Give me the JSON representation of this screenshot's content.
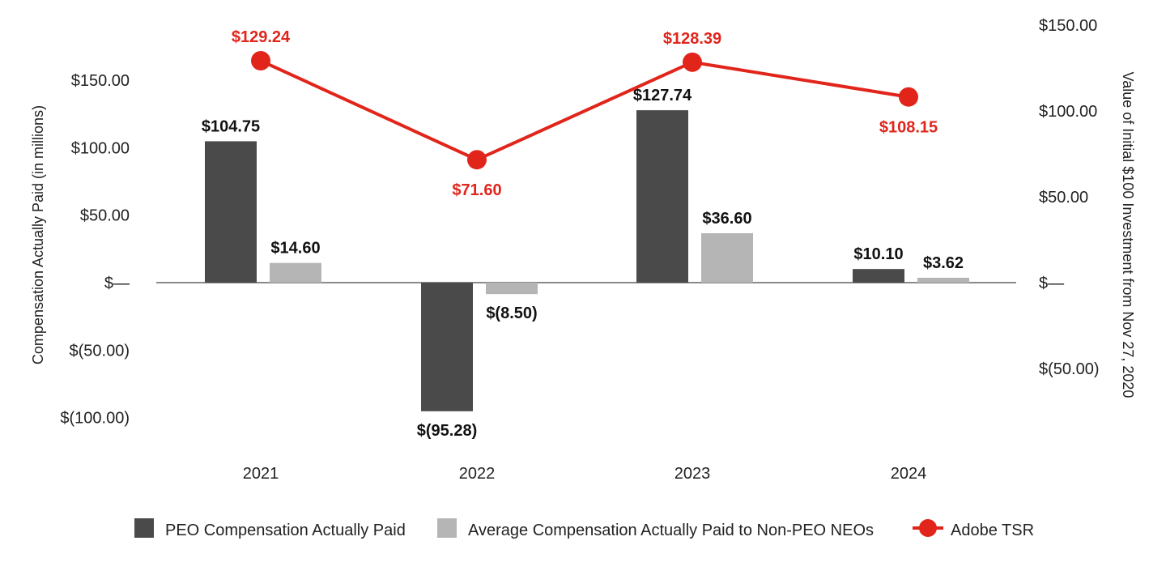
{
  "chart_data": {
    "type": "bar",
    "categories": [
      "2021",
      "2022",
      "2023",
      "2024"
    ],
    "series": [
      {
        "name": "PEO Compensation Actually Paid",
        "type": "bar",
        "axis": "left",
        "values": [
          104.75,
          -95.28,
          127.74,
          10.1
        ],
        "labels": [
          "$104.75",
          "$(95.28)",
          "$127.74",
          "$10.10"
        ],
        "color": "#4a4a4a"
      },
      {
        "name": "Average Compensation Actually Paid to Non-PEO NEOs",
        "type": "bar",
        "axis": "left",
        "values": [
          14.6,
          -8.5,
          36.6,
          3.62
        ],
        "labels": [
          "$14.60",
          "$(8.50)",
          "$36.60",
          "$3.62"
        ],
        "color": "#b5b5b5"
      },
      {
        "name": "Adobe TSR",
        "type": "line",
        "axis": "right",
        "values": [
          129.24,
          71.6,
          128.39,
          108.15
        ],
        "labels": [
          "$129.24",
          "$71.60",
          "$128.39",
          "$108.15"
        ],
        "color": "#e1251b"
      }
    ],
    "y_left": {
      "label": "Compensation Actually Paid (in millions)",
      "ylim": [
        -120,
        180
      ],
      "ticks": [
        150,
        100,
        50,
        0,
        -50,
        -100
      ],
      "tick_labels": [
        "$150.00",
        "$100.00",
        "$50.00",
        "$—",
        "$(50.00)",
        "$(100.00)"
      ]
    },
    "y_right": {
      "label": "Value of Initial $100 Investment from Nov 27, 2020",
      "ylim": [
        -80,
        170
      ],
      "ticks": [
        150,
        100,
        50,
        0,
        -50
      ],
      "tick_labels": [
        "$150.00",
        "$100.00",
        "$50.00",
        "$—",
        "$(50.00)"
      ]
    },
    "grid": false,
    "legend": {
      "position": "bottom"
    }
  }
}
